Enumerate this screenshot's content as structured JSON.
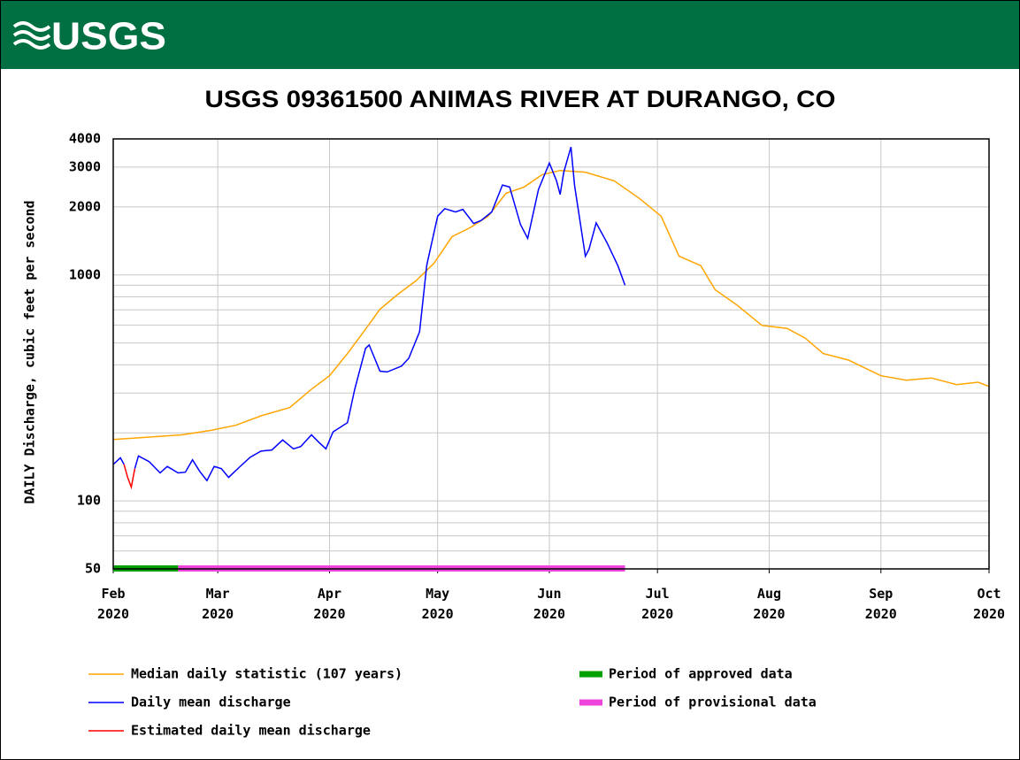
{
  "header": {
    "logo": "USGS"
  },
  "chart_data": {
    "type": "line",
    "title": "USGS 09361500 ANIMAS RIVER AT DURANGO, CO",
    "ylabel": "DAILY Discharge, cubic feet per second",
    "yscale": "log",
    "grid": true,
    "xlim": [
      "2020-02-01",
      "2020-10-01"
    ],
    "ylim": [
      50,
      4000
    ],
    "xticks": [
      {
        "value": "2020-02-01",
        "label": "Feb 2020"
      },
      {
        "value": "2020-03-01",
        "label": "Mar 2020"
      },
      {
        "value": "2020-04-01",
        "label": "Apr 2020"
      },
      {
        "value": "2020-05-01",
        "label": "May 2020"
      },
      {
        "value": "2020-06-01",
        "label": "Jun 2020"
      },
      {
        "value": "2020-07-01",
        "label": "Jul 2020"
      },
      {
        "value": "2020-08-01",
        "label": "Aug 2020"
      },
      {
        "value": "2020-09-01",
        "label": "Sep 2020"
      },
      {
        "value": "2020-10-01",
        "label": "Oct 2020"
      }
    ],
    "yticks": [
      50,
      100,
      1000,
      2000,
      3000,
      4000
    ],
    "minor_yticks": [
      60,
      70,
      80,
      90,
      200,
      300,
      400,
      500,
      600,
      700,
      800,
      900
    ],
    "series": [
      {
        "name": "Median daily statistic (107 years)",
        "color": "#ffa500",
        "x": [
          "2020-02-01",
          "2020-02-12",
          "2020-02-20",
          "2020-02-28",
          "2020-03-06",
          "2020-03-13",
          "2020-03-21",
          "2020-03-27",
          "2020-04-01",
          "2020-04-06",
          "2020-04-10",
          "2020-04-15",
          "2020-04-20",
          "2020-04-25",
          "2020-04-30",
          "2020-05-05",
          "2020-05-10",
          "2020-05-15",
          "2020-05-20",
          "2020-05-25",
          "2020-05-30",
          "2020-06-04",
          "2020-06-11",
          "2020-06-19",
          "2020-06-26",
          "2020-07-02",
          "2020-07-07",
          "2020-07-13",
          "2020-07-17",
          "2020-07-23",
          "2020-07-30",
          "2020-08-06",
          "2020-08-11",
          "2020-08-16",
          "2020-08-23",
          "2020-09-01",
          "2020-09-08",
          "2020-09-15",
          "2020-09-22",
          "2020-09-28",
          "2020-10-01"
        ],
        "values": [
          187,
          192,
          196,
          205,
          216,
          238,
          259,
          312,
          358,
          449,
          547,
          705,
          822,
          942,
          1127,
          1478,
          1618,
          1819,
          2300,
          2450,
          2780,
          2900,
          2850,
          2610,
          2180,
          1820,
          1210,
          1100,
          860,
          737,
          598,
          580,
          525,
          449,
          420,
          358,
          342,
          350,
          327,
          335,
          321
        ]
      },
      {
        "name": "Daily mean discharge",
        "color": "#0000ff",
        "x": [
          "2020-02-01",
          "2020-02-03",
          "2020-02-04",
          "2020-02-05",
          "2020-02-06",
          "2020-02-07",
          "2020-02-08",
          "2020-02-11",
          "2020-02-14",
          "2020-02-16",
          "2020-02-19",
          "2020-02-21",
          "2020-02-23",
          "2020-02-25",
          "2020-02-27",
          "2020-02-29",
          "2020-03-02",
          "2020-03-04",
          "2020-03-07",
          "2020-03-10",
          "2020-03-13",
          "2020-03-16",
          "2020-03-19",
          "2020-03-22",
          "2020-03-24",
          "2020-03-27",
          "2020-03-29",
          "2020-03-31",
          "2020-04-02",
          "2020-04-06",
          "2020-04-08",
          "2020-04-11",
          "2020-04-12",
          "2020-04-15",
          "2020-04-17",
          "2020-04-21",
          "2020-04-23",
          "2020-04-26",
          "2020-04-28",
          "2020-05-01",
          "2020-05-03",
          "2020-05-06",
          "2020-05-08",
          "2020-05-11",
          "2020-05-13",
          "2020-05-16",
          "2020-05-19",
          "2020-05-21",
          "2020-05-24",
          "2020-05-26",
          "2020-05-29",
          "2020-06-01",
          "2020-06-03",
          "2020-06-04",
          "2020-06-05",
          "2020-06-07",
          "2020-06-08",
          "2020-06-11",
          "2020-06-12",
          "2020-06-14",
          "2020-06-17",
          "2020-06-20",
          "2020-06-22"
        ],
        "values": [
          145,
          155,
          145,
          null,
          null,
          139,
          158,
          149,
          133,
          142,
          133,
          134,
          152,
          135,
          123,
          142,
          139,
          127,
          141,
          156,
          166,
          168,
          186,
          170,
          174,
          196,
          182,
          170,
          202,
          222,
          312,
          473,
          490,
          375,
          372,
          395,
          428,
          561,
          1104,
          1819,
          1966,
          1900,
          1950,
          1690,
          1740,
          1900,
          2500,
          2450,
          1670,
          1450,
          2390,
          3130,
          2610,
          2270,
          2850,
          3680,
          2490,
          1210,
          1300,
          1700,
          1390,
          1100,
          900
        ]
      },
      {
        "name": "Estimated daily mean discharge",
        "color": "#ff0000",
        "x": [
          "2020-02-04",
          "2020-02-05",
          "2020-02-06",
          "2020-02-07"
        ],
        "values": [
          145,
          127,
          115,
          139
        ]
      }
    ],
    "periods": [
      {
        "name": "Period of approved data",
        "color": "#00a000",
        "start": "2020-02-01",
        "end": "2020-02-19"
      },
      {
        "name": "Period of provisional data",
        "color": "#ee44dd",
        "start": "2020-02-19",
        "end": "2020-06-22"
      }
    ]
  }
}
